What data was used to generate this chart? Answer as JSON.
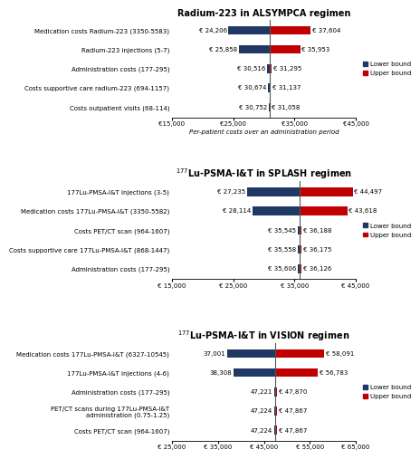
{
  "panel1": {
    "title": "Radium-223 in ALSYMPCA regimen",
    "xlabel": "Per-patient costs over an administration period",
    "xlim": [
      15000,
      45000
    ],
    "xticks": [
      15000,
      25000,
      35000,
      45000
    ],
    "xtick_labels": [
      "€15,000",
      "€25,000",
      "€35,000",
      "€45,000"
    ],
    "baseline": 30906,
    "categories": [
      "Medication costs Radium-223 (3350-5583)",
      "Radium-223 injections (5-7)",
      "Administration costs (177-295)",
      "Costs supportive care radium-223 (694-1157)",
      "Costs outpatient visits (68-114)"
    ],
    "lower": [
      24206,
      25858,
      30516,
      30674,
      30752
    ],
    "upper": [
      37604,
      35953,
      31295,
      31137,
      31058
    ],
    "lower_labels": [
      "€ 24,206",
      "€ 25,858",
      "€ 30,516",
      "€ 30,674",
      "€ 30,752"
    ],
    "upper_labels": [
      "€ 37,604",
      "€ 35,953",
      "€ 31,295",
      "€ 31,137",
      "€ 31,058"
    ]
  },
  "panel2": {
    "title": "$^{177}$Lu-PSMA-I&T in SPLASH regimen",
    "xlabel": "",
    "xlim": [
      15000,
      45000
    ],
    "xticks": [
      15000,
      25000,
      35000,
      45000
    ],
    "xtick_labels": [
      "€ 15,000",
      "€ 25,000",
      "€ 35,000",
      "€ 45,000"
    ],
    "baseline": 35866,
    "categories": [
      "177Lu-PMSA-I&T injections (3-5)",
      "Medication costs 177Lu-PMSA-I&T (3350-5582)",
      "Costs PET/CT scan (964-1607)",
      "Costs supportive care 177Lu-PMSA-I&T (868-1447)",
      "Administration costs (177-295)"
    ],
    "lower": [
      27235,
      28114,
      35545,
      35558,
      35606
    ],
    "upper": [
      44497,
      43618,
      36188,
      36175,
      36126
    ],
    "lower_labels": [
      "€ 27,235",
      "€ 28,114",
      "€ 35,545",
      "€ 35,558",
      "€ 35,606"
    ],
    "upper_labels": [
      "€ 44,497",
      "€ 43,618",
      "€ 36,188",
      "€ 36,175",
      "€ 36,126"
    ]
  },
  "panel3": {
    "title": "$^{177}$Lu-PSMA-I&T in VISION regimen",
    "xlabel": "",
    "xlim": [
      25000,
      65000
    ],
    "xticks": [
      25000,
      35000,
      45000,
      55000,
      65000
    ],
    "xtick_labels": [
      "€ 25,000",
      "€ 35,000",
      "€ 45,000",
      "€ 55,000",
      "€ 65,000"
    ],
    "baseline": 47546,
    "categories": [
      "Medication costs 177Lu-PMSA-I&T (6327-10545)",
      "177Lu-PMSA-I&T injections (4-6)",
      "Administration costs (177-295)",
      "PET/CT scans during 177Lu-PMSA-I&T\nadministration (0.75-1.25)",
      "Costs PET/CT scan (964-1607)"
    ],
    "lower": [
      37001,
      38308,
      47221,
      47224,
      47224
    ],
    "upper": [
      58091,
      56783,
      47870,
      47867,
      47867
    ],
    "lower_labels": [
      "37,001",
      "38,308",
      "47,221",
      "47,224",
      "47,224"
    ],
    "upper_labels": [
      "€ 58,091",
      "€ 56,783",
      "€ 47,870",
      "€ 47,867",
      "€ 47,867"
    ]
  },
  "color_lower": "#1f3864",
  "color_upper": "#c00000",
  "legend_lower": "Lower bound",
  "legend_upper": "Upper bound",
  "background_color": "#ffffff",
  "bar_height": 0.45,
  "label_fontsize": 5.0,
  "title_fontsize": 7.0,
  "tick_fontsize": 5.0,
  "cat_fontsize": 5.0
}
